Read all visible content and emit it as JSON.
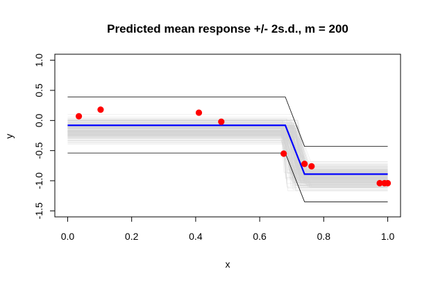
{
  "chart_data": {
    "type": "line",
    "title": "Predicted mean response +/- 2s.d., m = 200",
    "xlabel": "x",
    "ylabel": "y",
    "xlim": [
      -0.04,
      1.04
    ],
    "ylim": [
      -1.6,
      1.1
    ],
    "x_ticks": [
      0.0,
      0.2,
      0.4,
      0.6,
      0.8,
      1.0
    ],
    "x_tick_labels": [
      "0.0",
      "0.2",
      "0.4",
      "0.6",
      "0.8",
      "1.0"
    ],
    "y_ticks": [
      -1.5,
      -1.0,
      -0.5,
      0.0,
      0.5,
      1.0
    ],
    "y_tick_labels": [
      "-1.5",
      "-1.0",
      "-0.5",
      "0.0",
      "0.5",
      "1.0"
    ],
    "grid": false,
    "legend": "none",
    "series": [
      {
        "role": "mean",
        "color": "#0000ff",
        "x": [
          0.0,
          0.68,
          0.74,
          1.0
        ],
        "y": [
          -0.08,
          -0.08,
          -0.89,
          -0.89
        ]
      },
      {
        "role": "upper-band",
        "color": "#000000",
        "x": [
          0.0,
          0.68,
          0.74,
          1.0
        ],
        "y": [
          0.39,
          0.39,
          -0.43,
          -0.43
        ]
      },
      {
        "role": "lower-band",
        "color": "#000000",
        "x": [
          0.0,
          0.68,
          0.74,
          1.0
        ],
        "y": [
          -0.54,
          -0.54,
          -1.35,
          -1.35
        ]
      }
    ],
    "samples": {
      "color": "#d3d3d3",
      "count": 200,
      "level_left_range": [
        -0.42,
        0.12
      ],
      "level_right_range": [
        -1.25,
        -0.62
      ],
      "jump_x_range": [
        0.665,
        0.745
      ]
    },
    "points": {
      "color": "#ff0000",
      "x": [
        0.035,
        0.103,
        0.41,
        0.48,
        0.675,
        0.74,
        0.762,
        0.975,
        0.99,
        1.0
      ],
      "y": [
        0.07,
        0.18,
        0.13,
        -0.02,
        -0.55,
        -0.72,
        -0.76,
        -1.04,
        -1.04,
        -1.04
      ]
    }
  }
}
